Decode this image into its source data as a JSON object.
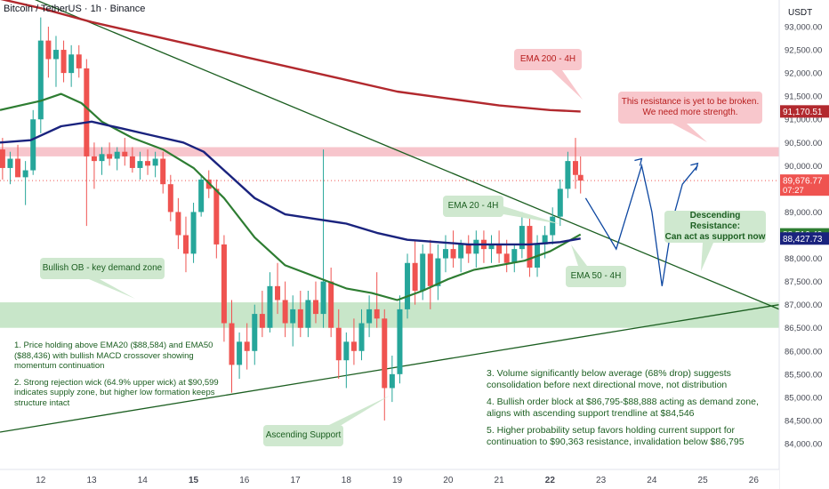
{
  "symbol": {
    "title": "Bitcoin / TetherUS · 1h · Binance"
  },
  "colors": {
    "up": "#26a69a",
    "down": "#ef5350",
    "ema200": "#b2292e",
    "ema50": "#2e7d32",
    "ema20": "#1a237e",
    "trendline": "#1b5e20",
    "resistance_zone": "#f7c5cc",
    "demand_zone": "#c8e6c9",
    "projection": "#0d47a1"
  },
  "chart_data": {
    "type": "line",
    "title": "Bitcoin / TetherUS · 1h · Binance",
    "currency_label": "USDT",
    "ylim": [
      83500,
      93300
    ],
    "y_ticks": [
      "93,000.00",
      "92,500.00",
      "92,000.00",
      "91,500.00",
      "91,000.00",
      "90,500.00",
      "90,000.00",
      "89,500.00",
      "89,000.00",
      "88,500.00",
      "88,000.00",
      "87,500.00",
      "87,000.00",
      "86,500.00",
      "86,000.00",
      "85,500.00",
      "85,000.00",
      "84,500.00",
      "84,000.00"
    ],
    "y_tick_values": [
      93000,
      92500,
      92000,
      91500,
      91000,
      90500,
      90000,
      89500,
      89000,
      88500,
      88000,
      87500,
      87000,
      86500,
      86000,
      85500,
      85000,
      84500,
      84000
    ],
    "xlim": [
      11.2,
      26.5
    ],
    "x_ticks": [
      {
        "label": "12",
        "value": 12,
        "bold": false
      },
      {
        "label": "13",
        "value": 13,
        "bold": false
      },
      {
        "label": "14",
        "value": 14,
        "bold": false
      },
      {
        "label": "15",
        "value": 15,
        "bold": true
      },
      {
        "label": "16",
        "value": 16,
        "bold": false
      },
      {
        "label": "17",
        "value": 17,
        "bold": false
      },
      {
        "label": "18",
        "value": 18,
        "bold": false
      },
      {
        "label": "19",
        "value": 19,
        "bold": false
      },
      {
        "label": "20",
        "value": 20,
        "bold": false
      },
      {
        "label": "21",
        "value": 21,
        "bold": false
      },
      {
        "label": "22",
        "value": 22,
        "bold": true
      },
      {
        "label": "23",
        "value": 23,
        "bold": false
      },
      {
        "label": "24",
        "value": 24,
        "bold": false
      },
      {
        "label": "25",
        "value": 25,
        "bold": false
      },
      {
        "label": "26",
        "value": 26,
        "bold": false
      }
    ],
    "price_labels": [
      {
        "value": 91170.51,
        "text": "91,170.51",
        "color": "#b2292e"
      },
      {
        "value": 89676.77,
        "text": "89,676.77",
        "sub": "07:27",
        "color": "#ef5350"
      },
      {
        "value": 88516.49,
        "text": "88,516.49",
        "color": "#2e7d32"
      },
      {
        "value": 88427.73,
        "text": "88,427.73",
        "color": "#1a237e"
      }
    ],
    "zones": [
      {
        "name": "resistance",
        "from": 90200,
        "to": 90400
      },
      {
        "name": "demand",
        "from": 86500,
        "to": 87050
      }
    ],
    "series": [
      {
        "name": "EMA 200 - 4H",
        "x": [
          11.2,
          12,
          13,
          14,
          15,
          16,
          17,
          18,
          19,
          20,
          21,
          22,
          22.6
        ],
        "y": [
          93600,
          93400,
          93100,
          92850,
          92600,
          92350,
          92100,
          91850,
          91600,
          91450,
          91300,
          91200,
          91170
        ]
      },
      {
        "name": "EMA 50 - 4H",
        "x": [
          11.2,
          11.6,
          12.0,
          12.4,
          12.8,
          13.2,
          13.8,
          14.4,
          15.0,
          15.6,
          16.2,
          16.8,
          17.4,
          18.0,
          18.5,
          19.0,
          19.5,
          20.0,
          20.5,
          21.0,
          21.5,
          22.0,
          22.6
        ],
        "y": [
          91200,
          91300,
          91400,
          91550,
          91350,
          90950,
          90600,
          90350,
          89950,
          89300,
          88450,
          87850,
          87600,
          87350,
          87250,
          87100,
          87300,
          87550,
          87750,
          87850,
          87950,
          88150,
          88516
        ]
      },
      {
        "name": "EMA 20 - 4H",
        "x": [
          11.2,
          11.8,
          12.4,
          13.0,
          13.6,
          14.2,
          14.8,
          15.2,
          15.6,
          16.2,
          16.8,
          17.4,
          18.0,
          18.6,
          19.2,
          19.8,
          20.4,
          21.0,
          21.6,
          22.2,
          22.6
        ],
        "y": [
          90500,
          90550,
          90850,
          90950,
          90800,
          90650,
          90500,
          90300,
          89900,
          89300,
          88950,
          88850,
          88750,
          88550,
          88400,
          88350,
          88300,
          88300,
          88300,
          88350,
          88428
        ]
      }
    ],
    "candles": [
      {
        "x": 11.25,
        "o": 90350,
        "h": 90600,
        "l": 89700,
        "c": 89950
      },
      {
        "x": 11.4,
        "o": 89950,
        "h": 90300,
        "l": 89600,
        "c": 90150
      },
      {
        "x": 11.55,
        "o": 90150,
        "h": 90450,
        "l": 89800,
        "c": 89750
      },
      {
        "x": 11.7,
        "o": 89750,
        "h": 90100,
        "l": 89150,
        "c": 89900
      },
      {
        "x": 11.85,
        "o": 89900,
        "h": 91200,
        "l": 89800,
        "c": 91000
      },
      {
        "x": 12.0,
        "o": 91000,
        "h": 93200,
        "l": 90700,
        "c": 92700
      },
      {
        "x": 12.15,
        "o": 92700,
        "h": 93000,
        "l": 91900,
        "c": 92300
      },
      {
        "x": 12.3,
        "o": 92300,
        "h": 92800,
        "l": 91700,
        "c": 92500
      },
      {
        "x": 12.45,
        "o": 92500,
        "h": 92700,
        "l": 91800,
        "c": 92000
      },
      {
        "x": 12.6,
        "o": 92000,
        "h": 92600,
        "l": 91700,
        "c": 92400
      },
      {
        "x": 12.75,
        "o": 92400,
        "h": 92600,
        "l": 91900,
        "c": 92100
      },
      {
        "x": 12.9,
        "o": 92100,
        "h": 92300,
        "l": 88700,
        "c": 90200
      },
      {
        "x": 13.05,
        "o": 90200,
        "h": 90500,
        "l": 89500,
        "c": 90100
      },
      {
        "x": 13.2,
        "o": 90100,
        "h": 90400,
        "l": 89800,
        "c": 90250
      },
      {
        "x": 13.35,
        "o": 90250,
        "h": 90500,
        "l": 90000,
        "c": 90150
      },
      {
        "x": 13.5,
        "o": 90150,
        "h": 90400,
        "l": 89900,
        "c": 90300
      },
      {
        "x": 13.65,
        "o": 90300,
        "h": 90600,
        "l": 90000,
        "c": 90200
      },
      {
        "x": 13.8,
        "o": 90200,
        "h": 90400,
        "l": 89850,
        "c": 89950
      },
      {
        "x": 13.95,
        "o": 89950,
        "h": 90300,
        "l": 89700,
        "c": 90100
      },
      {
        "x": 14.1,
        "o": 90100,
        "h": 90350,
        "l": 89800,
        "c": 90000
      },
      {
        "x": 14.25,
        "o": 90000,
        "h": 90300,
        "l": 89750,
        "c": 90150
      },
      {
        "x": 14.4,
        "o": 90150,
        "h": 90300,
        "l": 89400,
        "c": 89600
      },
      {
        "x": 14.55,
        "o": 89600,
        "h": 89800,
        "l": 88800,
        "c": 89000
      },
      {
        "x": 14.7,
        "o": 89000,
        "h": 89300,
        "l": 88200,
        "c": 88500
      },
      {
        "x": 14.85,
        "o": 88500,
        "h": 88900,
        "l": 87700,
        "c": 88100
      },
      {
        "x": 15.0,
        "o": 88100,
        "h": 89200,
        "l": 87900,
        "c": 89000
      },
      {
        "x": 15.15,
        "o": 89000,
        "h": 89800,
        "l": 88900,
        "c": 89700
      },
      {
        "x": 15.3,
        "o": 89700,
        "h": 89900,
        "l": 89300,
        "c": 89500
      },
      {
        "x": 15.45,
        "o": 89500,
        "h": 89700,
        "l": 88000,
        "c": 88300
      },
      {
        "x": 15.6,
        "o": 88300,
        "h": 88500,
        "l": 86200,
        "c": 86600
      },
      {
        "x": 15.75,
        "o": 86600,
        "h": 87100,
        "l": 85100,
        "c": 85700
      },
      {
        "x": 15.9,
        "o": 85700,
        "h": 86400,
        "l": 85400,
        "c": 86200
      },
      {
        "x": 16.05,
        "o": 86200,
        "h": 86600,
        "l": 85600,
        "c": 86000
      },
      {
        "x": 16.2,
        "o": 86000,
        "h": 87000,
        "l": 85700,
        "c": 86800
      },
      {
        "x": 16.35,
        "o": 86800,
        "h": 87300,
        "l": 86300,
        "c": 86500
      },
      {
        "x": 16.5,
        "o": 86500,
        "h": 87700,
        "l": 86400,
        "c": 87400
      },
      {
        "x": 16.65,
        "o": 87400,
        "h": 87900,
        "l": 86800,
        "c": 87100
      },
      {
        "x": 16.8,
        "o": 87100,
        "h": 87500,
        "l": 86300,
        "c": 86600
      },
      {
        "x": 16.95,
        "o": 86600,
        "h": 87200,
        "l": 86100,
        "c": 86900
      },
      {
        "x": 17.1,
        "o": 86900,
        "h": 87300,
        "l": 86300,
        "c": 86500
      },
      {
        "x": 17.25,
        "o": 86500,
        "h": 87300,
        "l": 86300,
        "c": 87100
      },
      {
        "x": 17.4,
        "o": 87100,
        "h": 87500,
        "l": 86600,
        "c": 86800
      },
      {
        "x": 17.55,
        "o": 86800,
        "h": 90350,
        "l": 86500,
        "c": 87500
      },
      {
        "x": 17.7,
        "o": 87500,
        "h": 87800,
        "l": 86300,
        "c": 86500
      },
      {
        "x": 17.85,
        "o": 86500,
        "h": 86900,
        "l": 85400,
        "c": 85800
      },
      {
        "x": 18.0,
        "o": 85800,
        "h": 86400,
        "l": 85200,
        "c": 86200
      },
      {
        "x": 18.15,
        "o": 86200,
        "h": 86700,
        "l": 85700,
        "c": 86000
      },
      {
        "x": 18.3,
        "o": 86000,
        "h": 86900,
        "l": 85800,
        "c": 86600
      },
      {
        "x": 18.45,
        "o": 86600,
        "h": 87200,
        "l": 86300,
        "c": 86900
      },
      {
        "x": 18.6,
        "o": 86900,
        "h": 87700,
        "l": 86500,
        "c": 86700
      },
      {
        "x": 18.75,
        "o": 86700,
        "h": 86900,
        "l": 84500,
        "c": 85200
      },
      {
        "x": 18.9,
        "o": 85200,
        "h": 85900,
        "l": 84900,
        "c": 85500
      },
      {
        "x": 19.05,
        "o": 85500,
        "h": 87200,
        "l": 85300,
        "c": 86900
      },
      {
        "x": 19.2,
        "o": 86900,
        "h": 88100,
        "l": 86700,
        "c": 87900
      },
      {
        "x": 19.35,
        "o": 87900,
        "h": 88400,
        "l": 87000,
        "c": 87300
      },
      {
        "x": 19.5,
        "o": 87300,
        "h": 88300,
        "l": 87100,
        "c": 88100
      },
      {
        "x": 19.65,
        "o": 88100,
        "h": 88400,
        "l": 86900,
        "c": 87400
      },
      {
        "x": 19.8,
        "o": 87400,
        "h": 88300,
        "l": 87100,
        "c": 88000
      },
      {
        "x": 19.95,
        "o": 88000,
        "h": 88500,
        "l": 87700,
        "c": 88200
      },
      {
        "x": 20.1,
        "o": 88200,
        "h": 88600,
        "l": 87800,
        "c": 88000
      },
      {
        "x": 20.25,
        "o": 88000,
        "h": 88400,
        "l": 87700,
        "c": 88300
      },
      {
        "x": 20.4,
        "o": 88300,
        "h": 88500,
        "l": 87900,
        "c": 88100
      },
      {
        "x": 20.55,
        "o": 88100,
        "h": 88600,
        "l": 87800,
        "c": 88400
      },
      {
        "x": 20.7,
        "o": 88400,
        "h": 88600,
        "l": 87900,
        "c": 88200
      },
      {
        "x": 20.85,
        "o": 88200,
        "h": 88500,
        "l": 87900,
        "c": 88300
      },
      {
        "x": 21.0,
        "o": 88300,
        "h": 88600,
        "l": 87900,
        "c": 88100
      },
      {
        "x": 21.15,
        "o": 88100,
        "h": 88400,
        "l": 87700,
        "c": 87900
      },
      {
        "x": 21.3,
        "o": 87900,
        "h": 88300,
        "l": 87700,
        "c": 88200
      },
      {
        "x": 21.45,
        "o": 88200,
        "h": 89000,
        "l": 88000,
        "c": 88700
      },
      {
        "x": 21.6,
        "o": 88700,
        "h": 88900,
        "l": 87600,
        "c": 87800
      },
      {
        "x": 21.75,
        "o": 87800,
        "h": 88500,
        "l": 87600,
        "c": 88300
      },
      {
        "x": 21.9,
        "o": 88300,
        "h": 88700,
        "l": 88000,
        "c": 88500
      },
      {
        "x": 22.05,
        "o": 88500,
        "h": 89100,
        "l": 88300,
        "c": 88900
      },
      {
        "x": 22.2,
        "o": 88900,
        "h": 89700,
        "l": 88700,
        "c": 89500
      },
      {
        "x": 22.35,
        "o": 89500,
        "h": 90300,
        "l": 89300,
        "c": 90100
      },
      {
        "x": 22.5,
        "o": 90100,
        "h": 90600,
        "l": 89500,
        "c": 89800
      },
      {
        "x": 22.6,
        "o": 89800,
        "h": 90200,
        "l": 89400,
        "c": 89677
      }
    ],
    "trendlines": [
      {
        "name": "descending-resistance",
        "from": [
          11.2,
          93900
        ],
        "to": [
          26.5,
          86900
        ]
      },
      {
        "name": "ascending-support",
        "from": [
          11.2,
          84250
        ],
        "to": [
          26.5,
          87000
        ]
      }
    ],
    "projection": {
      "x": [
        22.7,
        23.3,
        23.8,
        24.0,
        24.2,
        24.4,
        24.6,
        24.9
      ],
      "y": [
        89300,
        88200,
        90000,
        89000,
        87400,
        88800,
        89600,
        90000
      ]
    },
    "current_price_line": 89676.77
  },
  "callouts": {
    "ema200": "EMA 200 - 4H",
    "resistance_note": "This resistance is yet to be broken.\nWe need more strength.",
    "ema20": "EMA 20 - 4H",
    "ema50": "EMA 50 - 4H",
    "descending": "Descending Resistance:\nCan act as support now",
    "bullish_ob": "Bullish OB - key demand zone",
    "ascending": "Ascending Support"
  },
  "notes_left": [
    "1. Price holding above EMA20 ($88,584) and EMA50 ($88,436) with bullish MACD crossover showing momentum continuation",
    "2. Strong rejection wick (64.9% upper wick) at $90,599 indicates supply zone, but higher low formation keeps structure intact"
  ],
  "notes_right": [
    "3. Volume significantly below average (68% drop) suggests consolidation before next directional move, not distribution",
    "4. Bullish order block at $86,795-$88,888 acting as demand zone, aligns with ascending support trendline at $84,546",
    "5. Higher probability setup favors holding current support for continuation to $90,363 resistance, invalidation below $86,795"
  ]
}
